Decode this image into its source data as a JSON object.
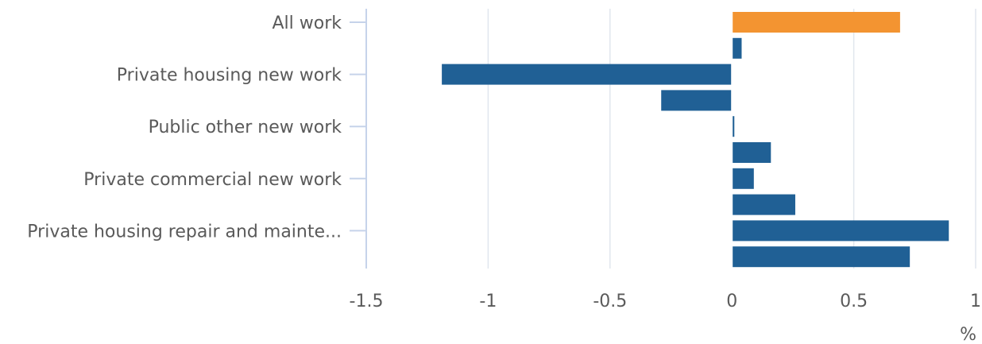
{
  "chart_data": {
    "type": "bar",
    "orientation": "horizontal",
    "categories": [
      "All work",
      "",
      "Private housing new work",
      "",
      "Public other new work",
      "",
      "Private commercial new work",
      "",
      "Private housing repair and mainte...",
      ""
    ],
    "values": [
      0.69,
      0.04,
      -1.19,
      -0.29,
      0.01,
      0.16,
      0.09,
      0.26,
      0.89,
      0.73
    ],
    "highlight_index": 0,
    "xlim": [
      -1.5,
      1
    ],
    "x_ticks": [
      {
        "value": -1.5,
        "label": "-1.5"
      },
      {
        "value": -1,
        "label": "-1"
      },
      {
        "value": -0.5,
        "label": "-0.5"
      },
      {
        "value": 0,
        "label": "0"
      },
      {
        "value": 0.5,
        "label": "0.5"
      },
      {
        "value": 1,
        "label": "1"
      }
    ],
    "xlabel": "%",
    "ylabel": "",
    "title": "",
    "grid": true,
    "colors": {
      "highlight": "#f39431",
      "bar": "#206095",
      "grid": "#e1e6ee",
      "axis": "#c6d3ea",
      "zero_line": "#ffffff"
    }
  }
}
